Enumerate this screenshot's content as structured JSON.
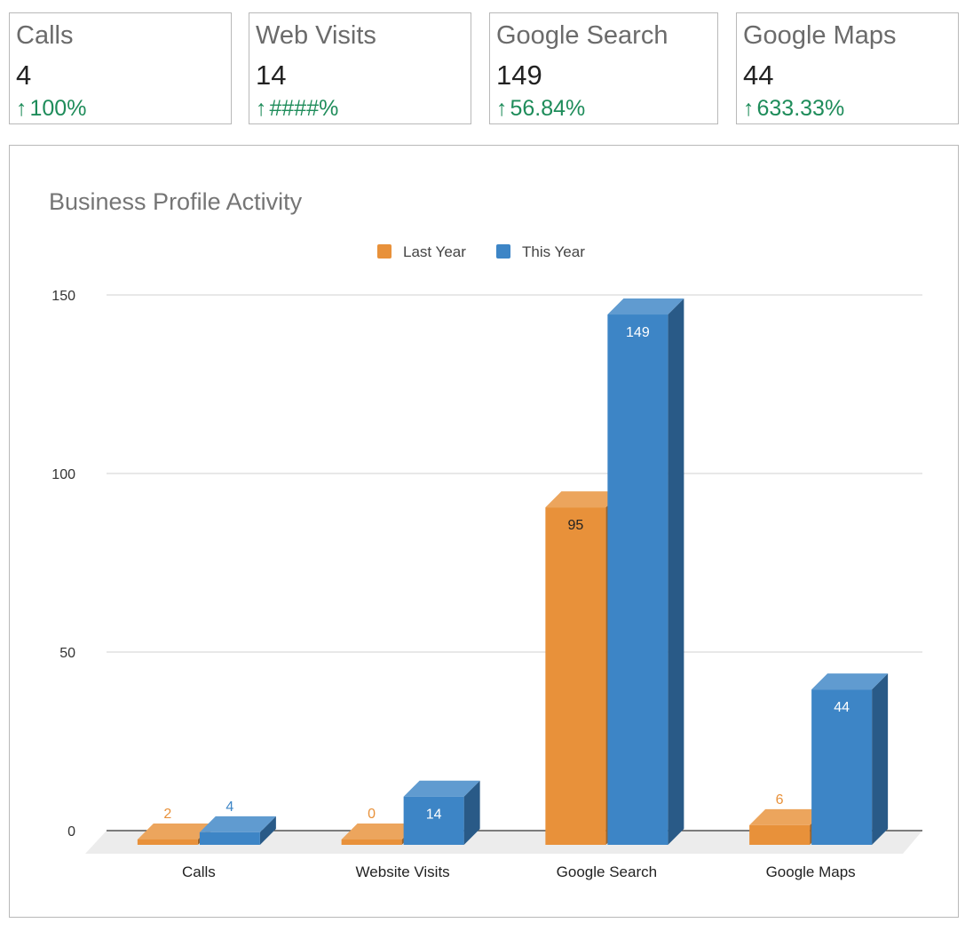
{
  "kpis": [
    {
      "label": "Calls",
      "value": "4",
      "arrow": "↑",
      "change": "100%"
    },
    {
      "label": "Web Visits",
      "value": "14",
      "arrow": "↑",
      "change": "####%"
    },
    {
      "label": "Google Search",
      "value": "149",
      "arrow": "↑",
      "change": "56.84%"
    },
    {
      "label": "Google Maps",
      "value": "44",
      "arrow": "↑",
      "change": "633.33%"
    }
  ],
  "colors": {
    "last_year": "#e8913a",
    "this_year": "#3d85c6",
    "positive_change": "#1e8c5a"
  },
  "chart_data": {
    "type": "bar",
    "style": "3d-clustered-column",
    "title": "Business Profile Activity",
    "categories": [
      "Calls",
      "Website Visits",
      "Google Search",
      "Google Maps"
    ],
    "series": [
      {
        "name": "Last Year",
        "values": [
          2,
          0,
          95,
          6
        ],
        "color": "#e8913a"
      },
      {
        "name": "This Year",
        "values": [
          4,
          14,
          149,
          44
        ],
        "color": "#3d85c6"
      }
    ],
    "ylim": [
      0,
      150
    ],
    "yticks": [
      0,
      50,
      100,
      150
    ],
    "grid": true,
    "legend": "top-center",
    "xlabel": "",
    "ylabel": ""
  }
}
